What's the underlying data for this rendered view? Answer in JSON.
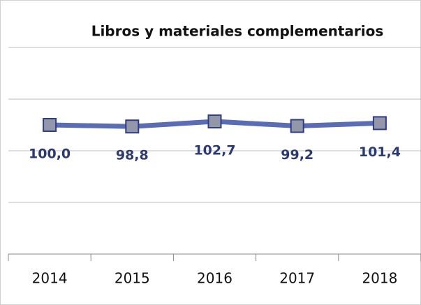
{
  "chart_data": {
    "type": "line",
    "title": "Libros y materiales complementarios",
    "categories": [
      "2014",
      "2015",
      "2016",
      "2017",
      "2018"
    ],
    "series": [
      {
        "name": "Libros y materiales complementarios",
        "color": "#5a6cb4",
        "values": [
          100.0,
          98.8,
          102.7,
          99.2,
          101.4
        ],
        "value_labels": [
          "100,0",
          "98,8",
          "102,7",
          "99,2",
          "101,4"
        ]
      }
    ],
    "ylim": [
      0,
      160
    ],
    "yticks": [
      0,
      40,
      80,
      120,
      160
    ],
    "grid": true
  }
}
